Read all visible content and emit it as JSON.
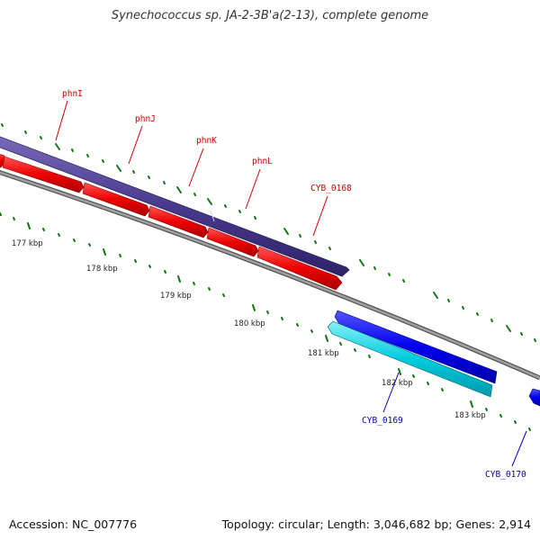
{
  "title": "Synechococcus sp. JA-2-3B'a(2-13), complete genome",
  "footer": {
    "accession": "Accession: NC_007776",
    "topology": "Topology: circular; Length: 3,046,682 bp; Genes: 2,914"
  },
  "colors": {
    "backbone": "#888888",
    "tick": "#117711",
    "forward_cds": "#ee0000",
    "forward_gene": "#4a3a8e",
    "reverse_cds": "#00ccdd",
    "reverse_gene": "#0000ee",
    "label_forward": "#cc0000",
    "label_reverse": "#0000bb"
  },
  "kbp_labels": [
    "177 kbp",
    "178 kbp",
    "179 kbp",
    "180 kbp",
    "181 kbp",
    "182 kbp",
    "183 kbp"
  ],
  "gene_labels": [
    {
      "id": "phnI",
      "text": "phnI",
      "strand": "forward"
    },
    {
      "id": "phnJ",
      "text": "phnJ",
      "strand": "forward"
    },
    {
      "id": "phnK",
      "text": "phnK",
      "strand": "forward"
    },
    {
      "id": "phnL",
      "text": "phnL",
      "strand": "forward"
    },
    {
      "id": "cyb0168",
      "text": "CYB_0168",
      "strand": "forward"
    },
    {
      "id": "cyb0169",
      "text": "CYB_0169",
      "strand": "reverse"
    },
    {
      "id": "cyb0170",
      "text": "CYB_0170",
      "strand": "reverse"
    }
  ]
}
